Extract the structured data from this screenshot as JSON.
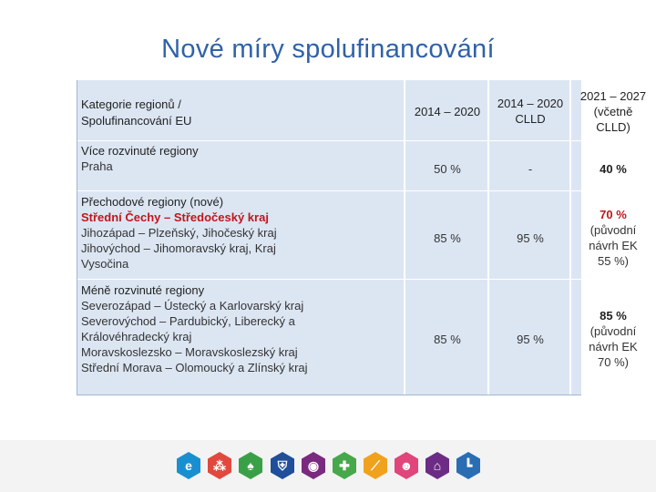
{
  "title": "Nové míry spolufinancování",
  "header": {
    "category": [
      "Kategorie regionů /",
      "Spolufinancování EU"
    ],
    "col_a": [
      "2014 – 2020"
    ],
    "col_b": [
      "2014 – 2020",
      "CLLD"
    ],
    "col_c": [
      "2021 – 2027",
      "(včetně",
      "CLLD)"
    ]
  },
  "rows": [
    {
      "title": "Více rozvinuté regiony",
      "lines": [
        "Praha"
      ],
      "a": "50 %",
      "b": "-",
      "c": "40 %"
    },
    {
      "title": "Přechodové regiony (nové)",
      "highlight": "Střední Čechy – Středočeský kraj",
      "lines": [
        "Jihozápad – Plzeňský, Jihočeský kraj",
        "Jihovýchod – Jihomoravský kraj, Kraj",
        "Vysočina"
      ],
      "a": "85 %",
      "b": "95 %",
      "c": "70 %",
      "c_note": [
        "(původní",
        "návrh EK",
        "55 %)"
      ]
    },
    {
      "title": "Méně rozvinuté regiony",
      "lines": [
        "Severozápad – Ústecký a Karlovarský kraj",
        "Severovýchod – Pardubický,  Liberecký a",
        "Královéhradecký kraj",
        "Moravskoslezsko – Moravskoslezský kraj",
        "Střední Morava – Olomoucký a Zlínský kraj"
      ],
      "a": "85 %",
      "b": "95 %",
      "c": "85 %",
      "c_note": [
        "(původní",
        "návrh EK",
        "70 %)"
      ]
    }
  ],
  "footer_icons": [
    {
      "name": "e-letter-icon",
      "glyph": "e",
      "color": "#1a8fd0"
    },
    {
      "name": "network-icon",
      "glyph": "⁂",
      "color": "#e2483d"
    },
    {
      "name": "leaf-icon",
      "glyph": "♠",
      "color": "#3aa047"
    },
    {
      "name": "shield-icon",
      "glyph": "⛨",
      "color": "#1f4e9b"
    },
    {
      "name": "compass-icon",
      "glyph": "◉",
      "color": "#7a2a7f"
    },
    {
      "name": "plus-icon",
      "glyph": "✚",
      "color": "#46a84a"
    },
    {
      "name": "slash-icon",
      "glyph": "⟋",
      "color": "#f0a21e"
    },
    {
      "name": "person-icon",
      "glyph": "☻",
      "color": "#e0457b"
    },
    {
      "name": "house-icon",
      "glyph": "⌂",
      "color": "#6c2c86"
    },
    {
      "name": "l-shape-icon",
      "glyph": "┗",
      "color": "#2b6db3"
    }
  ]
}
